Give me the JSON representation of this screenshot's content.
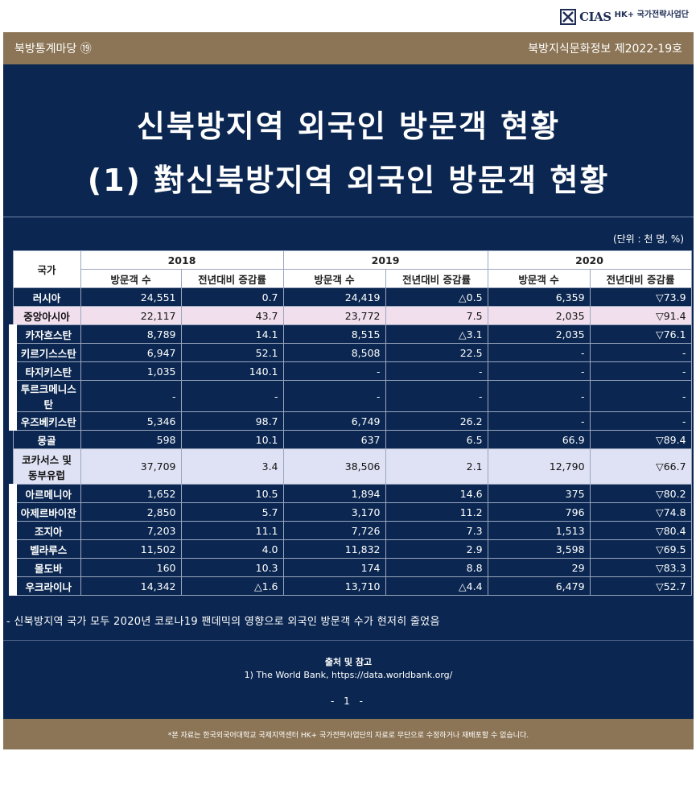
{
  "logo": {
    "text": "CIAS",
    "hk": "HK+ 국가전략사업단",
    "icon": "cias-logo-icon"
  },
  "header": {
    "series": "북방통계마당 ⑲",
    "issue": "북방지식문화정보 제2022-19호"
  },
  "title": {
    "line1": "신북방지역 외국인 방문객 현황",
    "line2": "(1) 對신북방지역 외국인 방문객 현황"
  },
  "unit": "(단위 : 천 명, %)",
  "table": {
    "country_header": "국가",
    "years": [
      "2018",
      "2019",
      "2020"
    ],
    "sub_headers": [
      "방문객 수",
      "전년대비 증감률"
    ],
    "rows": [
      {
        "name": "러시아",
        "sub": false,
        "highlight": "",
        "cells": [
          "24,551",
          "0.7",
          "24,419",
          "△0.5",
          "6,359",
          "▽73.9"
        ]
      },
      {
        "name": "중앙아시아",
        "sub": false,
        "highlight": "pink",
        "cells": [
          "22,117",
          "43.7",
          "23,772",
          "7.5",
          "2,035",
          "▽91.4"
        ]
      },
      {
        "name": "카자흐스탄",
        "sub": true,
        "highlight": "",
        "cells": [
          "8,789",
          "14.1",
          "8,515",
          "△3.1",
          "2,035",
          "▽76.1"
        ]
      },
      {
        "name": "키르기스스탄",
        "sub": true,
        "highlight": "",
        "cells": [
          "6,947",
          "52.1",
          "8,508",
          "22.5",
          "-",
          "-"
        ]
      },
      {
        "name": "타지키스탄",
        "sub": true,
        "highlight": "",
        "cells": [
          "1,035",
          "140.1",
          "-",
          "-",
          "-",
          "-"
        ]
      },
      {
        "name": "투르크메니스탄",
        "sub": true,
        "highlight": "",
        "cells": [
          "-",
          "-",
          "-",
          "-",
          "-",
          "-"
        ]
      },
      {
        "name": "우즈베키스탄",
        "sub": true,
        "highlight": "",
        "cells": [
          "5,346",
          "98.7",
          "6,749",
          "26.2",
          "-",
          "-"
        ]
      },
      {
        "name": "몽골",
        "sub": false,
        "highlight": "",
        "cells": [
          "598",
          "10.1",
          "637",
          "6.5",
          "66.9",
          "▽89.4"
        ]
      },
      {
        "name": "코카서스 및 동부유럽",
        "sub": false,
        "highlight": "blue",
        "cells": [
          "37,709",
          "3.4",
          "38,506",
          "2.1",
          "12,790",
          "▽66.7"
        ]
      },
      {
        "name": "아르메니아",
        "sub": true,
        "highlight": "",
        "cells": [
          "1,652",
          "10.5",
          "1,894",
          "14.6",
          "375",
          "▽80.2"
        ]
      },
      {
        "name": "아제르바이잔",
        "sub": true,
        "highlight": "",
        "cells": [
          "2,850",
          "5.7",
          "3,170",
          "11.2",
          "796",
          "▽74.8"
        ]
      },
      {
        "name": "조지아",
        "sub": true,
        "highlight": "",
        "cells": [
          "7,203",
          "11.1",
          "7,726",
          "7.3",
          "1,513",
          "▽80.4"
        ]
      },
      {
        "name": "벨라루스",
        "sub": true,
        "highlight": "",
        "cells": [
          "11,502",
          "4.0",
          "11,832",
          "2.9",
          "3,598",
          "▽69.5"
        ]
      },
      {
        "name": "몰도바",
        "sub": true,
        "highlight": "",
        "cells": [
          "160",
          "10.3",
          "174",
          "8.8",
          "29",
          "▽83.3"
        ]
      },
      {
        "name": "우크라이나",
        "sub": true,
        "highlight": "",
        "cells": [
          "14,342",
          "△1.6",
          "13,710",
          "△4.4",
          "6,479",
          "▽52.7"
        ]
      }
    ]
  },
  "note": "- 신북방지역 국가 모두 2020년 코로나19 팬데믹의 영향으로 외국인 방문객 수가 현저히 줄었음",
  "source": {
    "title": "출처 및 참고",
    "line": "1) The World Bank, https://data.worldbank.org/"
  },
  "page": "- 1 -",
  "footer": "*본 자료는 한국외국어대학교 국제지역센터 HK+ 국가전략사업단의 자료로 무단으로 수정하거나 재배포할 수 없습니다."
}
